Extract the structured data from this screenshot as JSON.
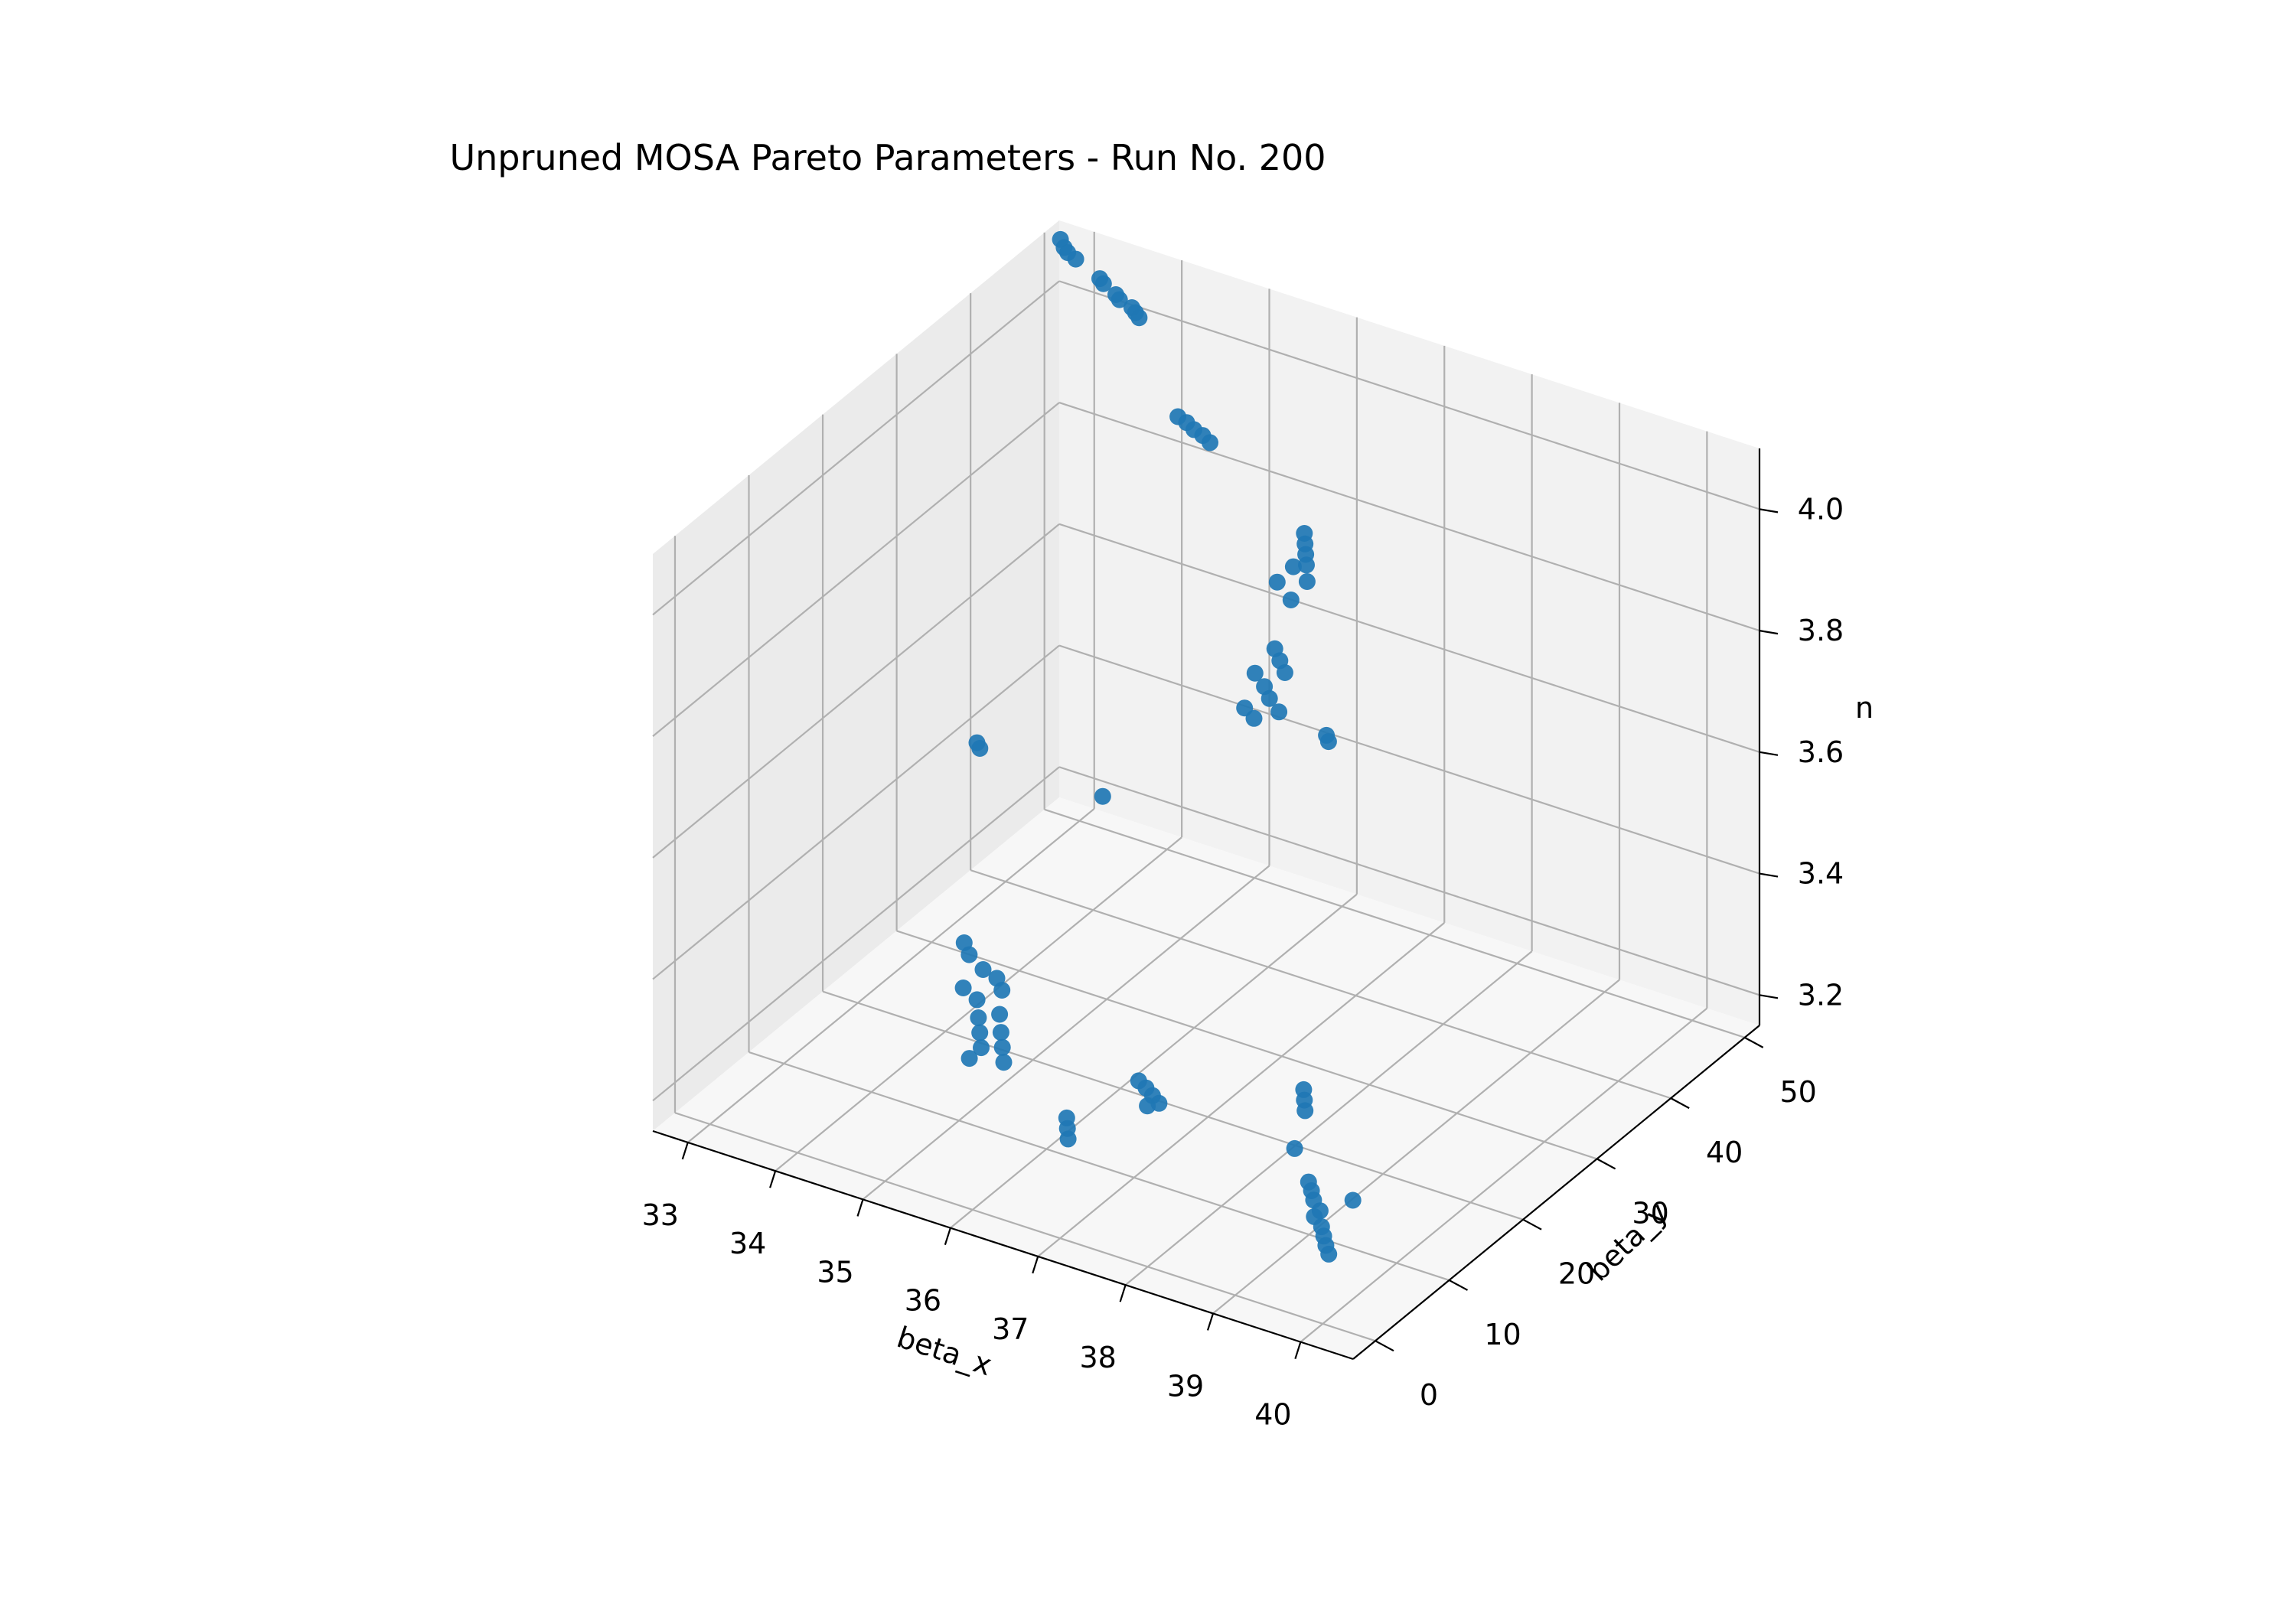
{
  "chart_data": {
    "type": "scatter",
    "projection": "3d",
    "title": "Unpruned MOSA Pareto Parameters - Run No. 200",
    "xlabel": "beta_x",
    "ylabel": "beta_y",
    "zlabel": "n",
    "x_ticks": [
      "33",
      "34",
      "35",
      "36",
      "37",
      "38",
      "39",
      "40"
    ],
    "y_ticks": [
      "0",
      "10",
      "20",
      "30",
      "40",
      "50"
    ],
    "z_ticks": [
      "3.2",
      "3.4",
      "3.6",
      "3.8",
      "4.0"
    ],
    "xlim": [
      32.6,
      40.6
    ],
    "ylim": [
      -3,
      52
    ],
    "zlim": [
      3.15,
      4.1
    ],
    "grid": true,
    "marker_color": "#1f77b4",
    "pane_colors": {
      "left": "#ebebeb",
      "back": "#f2f2f2",
      "floor": "#f7f7f7"
    },
    "grid_color": "#b0b0b0",
    "series": [
      {
        "points": [
          [
            32.8,
            49.8,
            4.1
          ],
          [
            32.85,
            49.7,
            4.09
          ],
          [
            32.9,
            49.6,
            4.085
          ],
          [
            33.0,
            49.5,
            4.08
          ],
          [
            33.3,
            49.2,
            4.065
          ],
          [
            33.35,
            49.1,
            4.06
          ],
          [
            33.5,
            49.0,
            4.05
          ],
          [
            33.55,
            48.9,
            4.045
          ],
          [
            33.7,
            48.8,
            4.04
          ],
          [
            33.75,
            48.7,
            4.035
          ],
          [
            33.8,
            48.6,
            4.03
          ],
          [
            34.8,
            42.0,
            3.98
          ],
          [
            34.9,
            42.0,
            3.975
          ],
          [
            35.0,
            41.8,
            3.97
          ],
          [
            35.1,
            41.8,
            3.965
          ],
          [
            35.2,
            41.6,
            3.96
          ],
          [
            37.3,
            29.5,
            4.03
          ],
          [
            37.35,
            29.0,
            4.02
          ],
          [
            37.4,
            28.5,
            4.01
          ],
          [
            37.45,
            28.0,
            4.0
          ],
          [
            37.3,
            28.0,
            3.99
          ],
          [
            37.5,
            27.5,
            3.98
          ],
          [
            37.2,
            27.0,
            3.97
          ],
          [
            37.4,
            26.5,
            3.955
          ],
          [
            37.3,
            25.5,
            3.88
          ],
          [
            37.4,
            25.0,
            3.87
          ],
          [
            37.5,
            24.5,
            3.86
          ],
          [
            37.2,
            24.0,
            3.85
          ],
          [
            37.35,
            23.5,
            3.84
          ],
          [
            37.45,
            23.0,
            3.83
          ],
          [
            37.6,
            22.5,
            3.82
          ],
          [
            37.25,
            22.0,
            3.815
          ],
          [
            37.4,
            21.5,
            3.81
          ],
          [
            38.1,
            23.0,
            3.8
          ],
          [
            38.15,
            22.7,
            3.795
          ],
          [
            33.5,
            30.2,
            3.5
          ],
          [
            33.55,
            30.0,
            3.495
          ],
          [
            34.7,
            33.0,
            3.44
          ],
          [
            34.3,
            19.0,
            3.32
          ],
          [
            34.4,
            18.5,
            3.31
          ],
          [
            34.6,
            18.0,
            3.3
          ],
          [
            34.8,
            17.5,
            3.3
          ],
          [
            34.9,
            17.0,
            3.29
          ],
          [
            34.5,
            16.5,
            3.28
          ],
          [
            34.7,
            16.0,
            3.275
          ],
          [
            35.0,
            15.5,
            3.27
          ],
          [
            34.8,
            15.0,
            3.26
          ],
          [
            35.1,
            14.5,
            3.255
          ],
          [
            34.9,
            14.0,
            3.25
          ],
          [
            35.2,
            13.5,
            3.245
          ],
          [
            35.0,
            13.0,
            3.24
          ],
          [
            35.3,
            12.5,
            3.235
          ],
          [
            34.95,
            12.0,
            3.23
          ],
          [
            36.8,
            13.0,
            3.27
          ],
          [
            36.9,
            12.8,
            3.265
          ],
          [
            37.0,
            12.5,
            3.26
          ],
          [
            37.1,
            12.2,
            3.255
          ],
          [
            37.0,
            11.8,
            3.25
          ],
          [
            36.4,
            8.0,
            3.24
          ],
          [
            36.45,
            7.5,
            3.23
          ],
          [
            36.5,
            7.0,
            3.22
          ],
          [
            38.6,
            14.0,
            3.33
          ],
          [
            38.65,
            13.5,
            3.32
          ],
          [
            38.7,
            13.0,
            3.31
          ],
          [
            38.75,
            11.0,
            3.27
          ],
          [
            39.5,
            10.0,
            3.23
          ],
          [
            39.5,
            4.0,
            3.32
          ],
          [
            39.55,
            3.8,
            3.31
          ],
          [
            39.6,
            3.5,
            3.3
          ],
          [
            39.7,
            3.2,
            3.29
          ],
          [
            39.65,
            3.0,
            3.28
          ],
          [
            39.75,
            2.8,
            3.27
          ],
          [
            39.8,
            2.5,
            3.26
          ],
          [
            39.85,
            2.2,
            3.25
          ],
          [
            39.9,
            2.0,
            3.24
          ]
        ]
      }
    ]
  }
}
